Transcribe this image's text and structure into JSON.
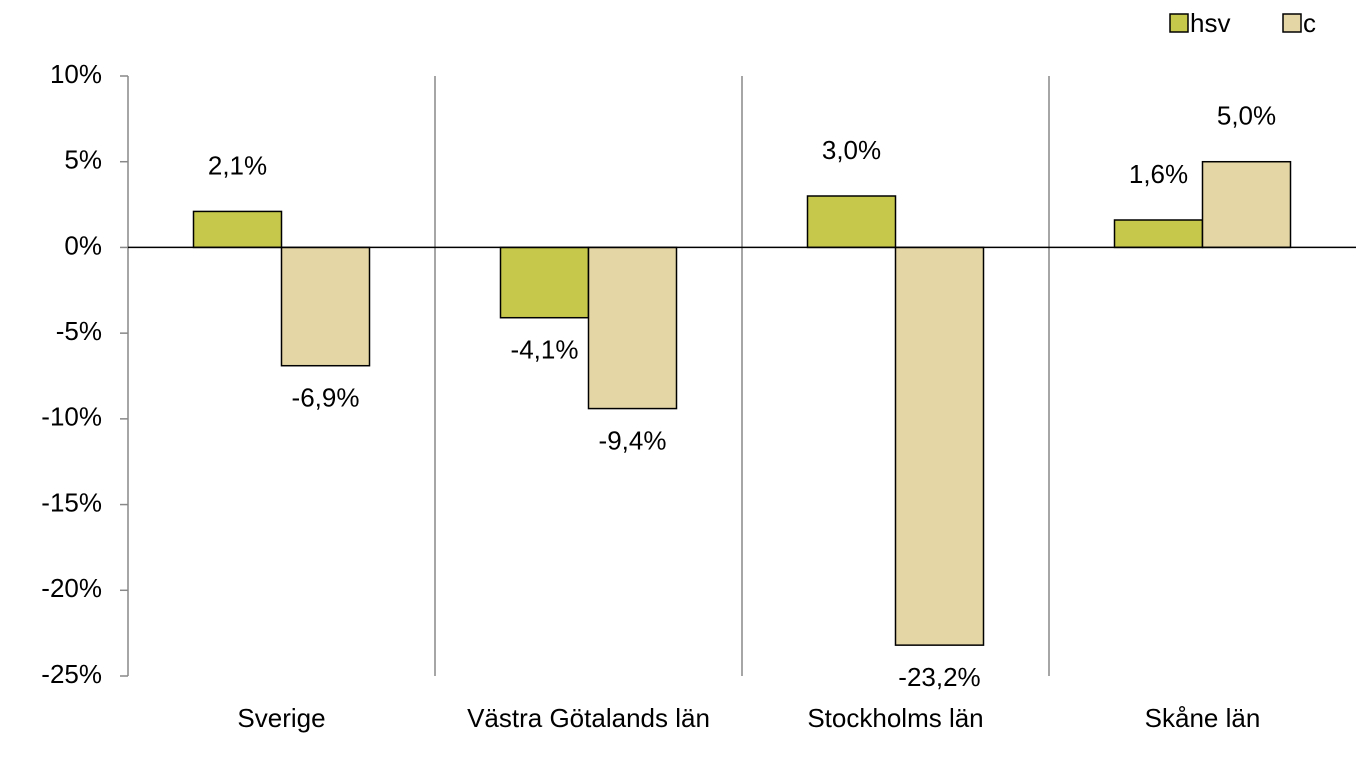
{
  "chart_data": {
    "type": "bar",
    "categories": [
      "Sverige",
      "Västra Götalands län",
      "Stockholms län",
      "Skåne län"
    ],
    "series": [
      {
        "name": "hsv",
        "color": "#c5c84a",
        "values": [
          2.1,
          -4.1,
          3.0,
          1.6
        ],
        "value_labels": [
          "2,1%",
          "-4,1%",
          "3,0%",
          "1,6%"
        ]
      },
      {
        "name": "c",
        "color": "#e5d7a5",
        "values": [
          -6.9,
          -9.4,
          -23.2,
          5.0
        ],
        "value_labels": [
          "-6,9%",
          "-9,4%",
          "-23,2%",
          "5,0%"
        ]
      }
    ],
    "ylim": [
      -25,
      10
    ],
    "yticks": [
      {
        "value": 10,
        "label": "10%"
      },
      {
        "value": 5,
        "label": "5%"
      },
      {
        "value": 0,
        "label": "0%"
      },
      {
        "value": -5,
        "label": "-5%"
      },
      {
        "value": -10,
        "label": "-10%"
      },
      {
        "value": -15,
        "label": "-15%"
      },
      {
        "value": -20,
        "label": "-20%"
      },
      {
        "value": -25,
        "label": "-25%"
      }
    ],
    "legend": "top-right"
  }
}
